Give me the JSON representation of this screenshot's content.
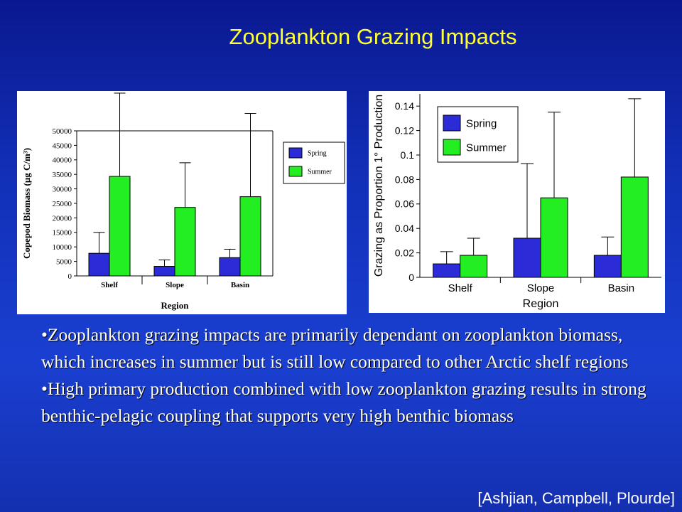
{
  "slide": {
    "title": "Zooplankton Grazing Impacts",
    "bullets": [
      "•Zooplankton grazing impacts are primarily dependant on zooplankton biomass, which increases in summer but is still low compared to other Arctic shelf regions",
      "•High primary production combined with low zooplankton grazing results in strong benthic-pelagic coupling that supports very high benthic biomass"
    ],
    "citation": "[Ashjian, Campbell, Plourde]"
  },
  "colors": {
    "spring": "#2b2bd8",
    "summer": "#22ee22",
    "title": "#ffff33"
  },
  "chart_data": [
    {
      "type": "bar",
      "categories": [
        "Shelf",
        "Slope",
        "Basin"
      ],
      "xlabel": "Region",
      "ylabel": "Copepod Biomass (μg C/m³)",
      "ylim": [
        0,
        50000
      ],
      "yticks": [
        0,
        5000,
        10000,
        15000,
        20000,
        25000,
        30000,
        35000,
        40000,
        45000,
        50000
      ],
      "legend": "right",
      "grid": false,
      "series": [
        {
          "name": "Spring",
          "values": [
            7800,
            3300,
            6300
          ],
          "error_upper": [
            15000,
            5500,
            9200
          ]
        },
        {
          "name": "Summer",
          "values": [
            34300,
            23600,
            27300
          ],
          "error_upper": [
            63000,
            39000,
            56000
          ]
        }
      ]
    },
    {
      "type": "bar",
      "categories": [
        "Shelf",
        "Slope",
        "Basin"
      ],
      "xlabel": "Region",
      "ylabel": "Grazing as Proportion 1° Production",
      "ylim": [
        0,
        0.15
      ],
      "yticks": [
        0,
        0.02,
        0.04,
        0.06,
        0.08,
        0.1,
        0.12,
        0.14
      ],
      "legend": "top-left",
      "grid": false,
      "series": [
        {
          "name": "Spring",
          "values": [
            0.011,
            0.032,
            0.018
          ],
          "error_upper": [
            0.021,
            0.093,
            0.033
          ]
        },
        {
          "name": "Summer",
          "values": [
            0.018,
            0.065,
            0.082
          ],
          "error_upper": [
            0.032,
            0.135,
            0.146
          ]
        }
      ]
    }
  ]
}
